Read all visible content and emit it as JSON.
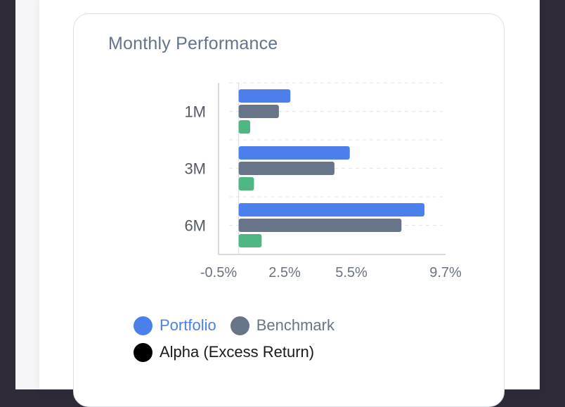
{
  "card": {
    "title": "Monthly Performance"
  },
  "chart_data": {
    "type": "bar",
    "orientation": "horizontal",
    "categories": [
      "1M",
      "3M",
      "6M"
    ],
    "series": [
      {
        "name": "Portfolio",
        "values": [
          2.7,
          5.8,
          9.7
        ],
        "color": "#4b7fec"
      },
      {
        "name": "Benchmark",
        "values": [
          2.1,
          5.0,
          8.5
        ],
        "color": "#687487"
      },
      {
        "name": "Alpha (Excess Return)",
        "values": [
          0.6,
          0.8,
          1.2
        ],
        "color": "#4fb783"
      }
    ],
    "x_ticks": [
      "-0.5%",
      "2.5%",
      "5.5%",
      "9.7%"
    ],
    "xlim": [
      -0.5,
      10.8
    ],
    "grid": "horizontal dashed",
    "legend_position": "bottom"
  },
  "legend": [
    {
      "label": "Portfolio",
      "swatch_color": "#4b7fec",
      "text_color": "#4b7fec"
    },
    {
      "label": "Benchmark",
      "swatch_color": "#687487",
      "text_color": "#687487"
    },
    {
      "label": "Alpha (Excess Return)",
      "swatch_color": "#000000",
      "text_color": "#1a1a1a"
    }
  ]
}
